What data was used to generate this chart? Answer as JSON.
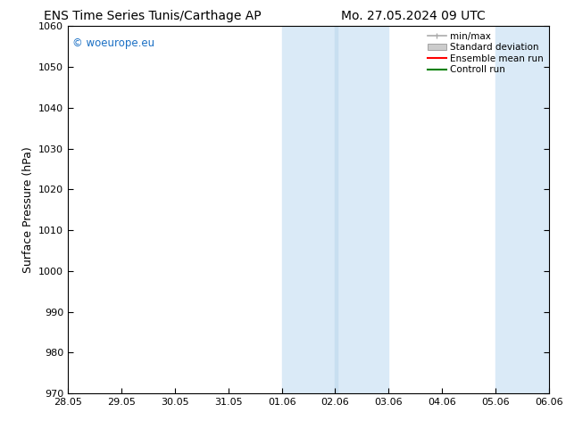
{
  "title_left": "ENS Time Series Tunis/Carthage AP",
  "title_right": "Mo. 27.05.2024 09 UTC",
  "ylabel": "Surface Pressure (hPa)",
  "ylim": [
    970,
    1060
  ],
  "yticks": [
    970,
    980,
    990,
    1000,
    1010,
    1020,
    1030,
    1040,
    1050,
    1060
  ],
  "xtick_labels": [
    "28.05",
    "29.05",
    "30.05",
    "31.05",
    "01.06",
    "02.06",
    "03.06",
    "04.06",
    "05.06",
    "06.06"
  ],
  "xtick_positions": [
    0,
    1,
    2,
    3,
    4,
    5,
    6,
    7,
    8,
    9
  ],
  "shaded_bands": [
    {
      "x_start": 4,
      "x_end": 5
    },
    {
      "x_start": 5,
      "x_end": 6
    },
    {
      "x_start": 8,
      "x_end": 9
    }
  ],
  "shade_colors": [
    "#daeaf7",
    "#cde3f5",
    "#daeaf7"
  ],
  "watermark_text": "© woeurope.eu",
  "watermark_color": "#1a6fc4",
  "legend_entries": [
    {
      "label": "min/max",
      "color": "#aaaaaa",
      "style": "minmax"
    },
    {
      "label": "Standard deviation",
      "color": "#cccccc",
      "style": "stddev"
    },
    {
      "label": "Ensemble mean run",
      "color": "red",
      "style": "line"
    },
    {
      "label": "Controll run",
      "color": "green",
      "style": "line"
    }
  ],
  "background_color": "#ffffff",
  "title_fontsize": 10,
  "tick_fontsize": 8,
  "ylabel_fontsize": 9
}
